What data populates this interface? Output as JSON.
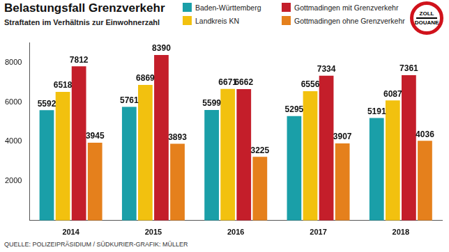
{
  "chart_data": {
    "type": "bar",
    "title": "Belastungsfall Grenzverkehr",
    "subtitle": "Straftaten im Verhältnis zur Einwohnerzahl",
    "categories": [
      "2014",
      "2015",
      "2016",
      "2017",
      "2018"
    ],
    "series": [
      {
        "name": "Baden-Württemberg",
        "color": "#1a9fa8",
        "values": [
          5592,
          5761,
          5599,
          5295,
          5191
        ]
      },
      {
        "name": "Landkreis KN",
        "color": "#f2c10f",
        "values": [
          6518,
          6869,
          6671,
          6556,
          6087
        ]
      },
      {
        "name": "Gottmadingen mit Grenzverkehr",
        "color": "#c41e2a",
        "values": [
          7812,
          8390,
          6662,
          7334,
          7361
        ]
      },
      {
        "name": "Gottmadingen ohne Grenzverkehr",
        "color": "#e5801c",
        "values": [
          3945,
          3893,
          3225,
          3907,
          4036
        ]
      }
    ],
    "ylim": [
      0,
      9000
    ],
    "yticks": [
      2000,
      4000,
      6000,
      8000
    ],
    "grid": false,
    "data_labels": true,
    "annotations": [
      "ZOLL",
      "DOUANE"
    ],
    "source": "QUELLE: POLIZEIPRÄSIDIUM / SÜDKURIER-GRAFIK: MÜLLER"
  }
}
